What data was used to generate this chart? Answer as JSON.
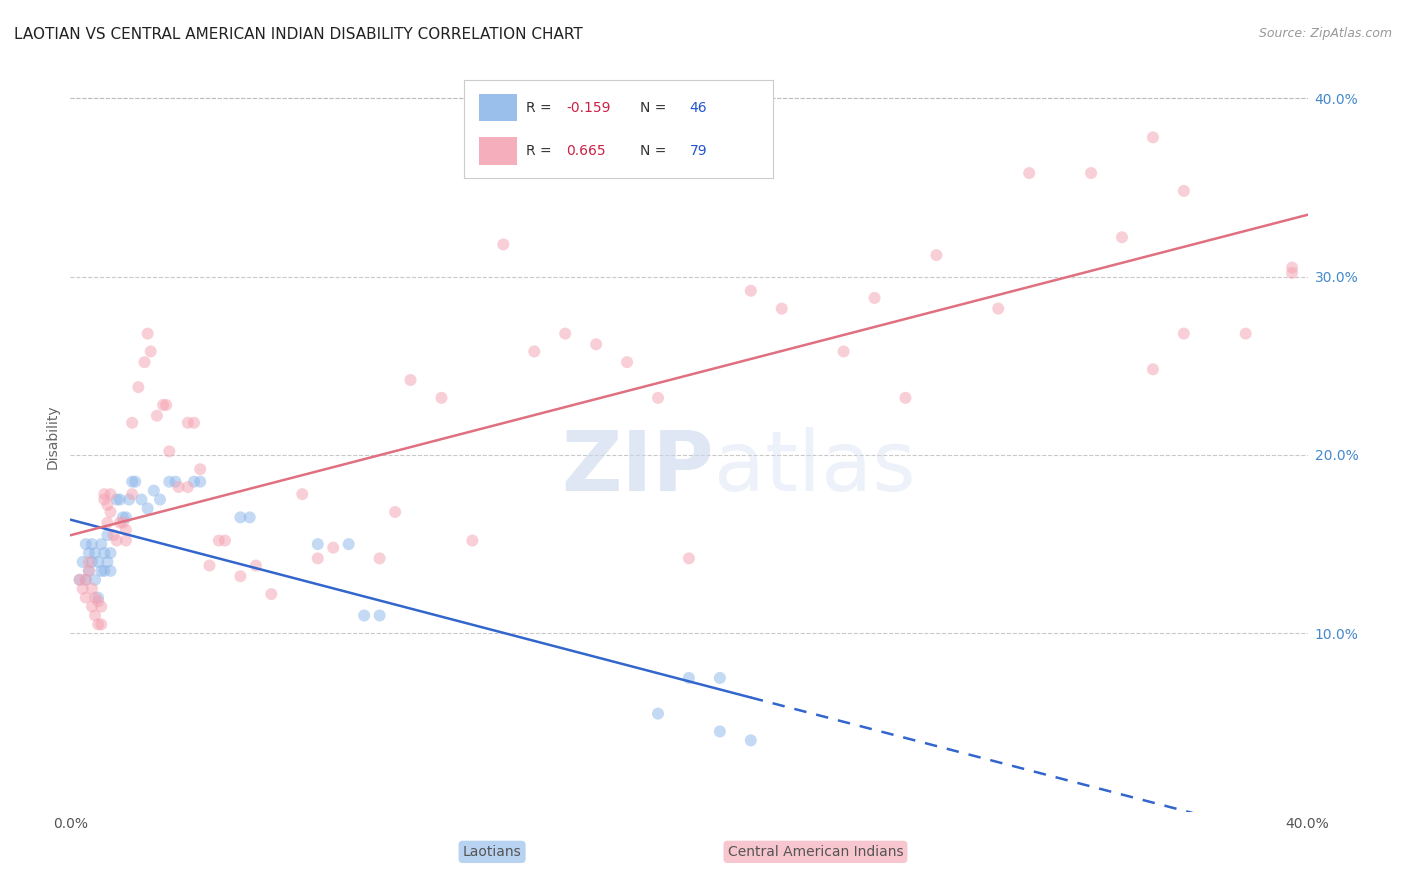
{
  "title": "LAOTIAN VS CENTRAL AMERICAN INDIAN DISABILITY CORRELATION CHART",
  "source": "Source: ZipAtlas.com",
  "ylabel": "Disability",
  "xmin": 0.0,
  "xmax": 0.4,
  "ymin": 0.0,
  "ymax": 0.42,
  "yticks": [
    0.1,
    0.2,
    0.3,
    0.4
  ],
  "ytick_labels": [
    "10.0%",
    "20.0%",
    "30.0%",
    "40.0%"
  ],
  "laotian_color": "#8ab4e8",
  "central_american_color": "#f4a0b0",
  "laotian_line_color": "#3366cc",
  "central_american_line_color": "#e07080",
  "laotian_R": -0.159,
  "laotian_N": 46,
  "central_american_R": 0.665,
  "central_american_N": 79,
  "watermark": "ZIPatlas",
  "laotian_points": [
    [
      0.003,
      0.13
    ],
    [
      0.004,
      0.14
    ],
    [
      0.005,
      0.15
    ],
    [
      0.005,
      0.13
    ],
    [
      0.006,
      0.145
    ],
    [
      0.006,
      0.135
    ],
    [
      0.007,
      0.15
    ],
    [
      0.007,
      0.14
    ],
    [
      0.008,
      0.145
    ],
    [
      0.008,
      0.13
    ],
    [
      0.009,
      0.14
    ],
    [
      0.009,
      0.12
    ],
    [
      0.01,
      0.135
    ],
    [
      0.01,
      0.15
    ],
    [
      0.011,
      0.145
    ],
    [
      0.011,
      0.135
    ],
    [
      0.012,
      0.14
    ],
    [
      0.012,
      0.155
    ],
    [
      0.013,
      0.145
    ],
    [
      0.013,
      0.135
    ],
    [
      0.015,
      0.175
    ],
    [
      0.016,
      0.175
    ],
    [
      0.017,
      0.165
    ],
    [
      0.018,
      0.165
    ],
    [
      0.019,
      0.175
    ],
    [
      0.02,
      0.185
    ],
    [
      0.021,
      0.185
    ],
    [
      0.023,
      0.175
    ],
    [
      0.025,
      0.17
    ],
    [
      0.027,
      0.18
    ],
    [
      0.029,
      0.175
    ],
    [
      0.032,
      0.185
    ],
    [
      0.034,
      0.185
    ],
    [
      0.04,
      0.185
    ],
    [
      0.042,
      0.185
    ],
    [
      0.055,
      0.165
    ],
    [
      0.058,
      0.165
    ],
    [
      0.08,
      0.15
    ],
    [
      0.09,
      0.15
    ],
    [
      0.095,
      0.11
    ],
    [
      0.1,
      0.11
    ],
    [
      0.2,
      0.075
    ],
    [
      0.21,
      0.075
    ],
    [
      0.19,
      0.055
    ],
    [
      0.21,
      0.045
    ],
    [
      0.22,
      0.04
    ]
  ],
  "central_american_points": [
    [
      0.003,
      0.13
    ],
    [
      0.004,
      0.125
    ],
    [
      0.005,
      0.12
    ],
    [
      0.005,
      0.13
    ],
    [
      0.006,
      0.14
    ],
    [
      0.006,
      0.135
    ],
    [
      0.007,
      0.115
    ],
    [
      0.007,
      0.125
    ],
    [
      0.008,
      0.11
    ],
    [
      0.008,
      0.12
    ],
    [
      0.009,
      0.105
    ],
    [
      0.009,
      0.118
    ],
    [
      0.01,
      0.115
    ],
    [
      0.01,
      0.105
    ],
    [
      0.011,
      0.175
    ],
    [
      0.011,
      0.178
    ],
    [
      0.012,
      0.172
    ],
    [
      0.012,
      0.162
    ],
    [
      0.013,
      0.178
    ],
    [
      0.013,
      0.168
    ],
    [
      0.014,
      0.155
    ],
    [
      0.015,
      0.152
    ],
    [
      0.016,
      0.162
    ],
    [
      0.017,
      0.162
    ],
    [
      0.018,
      0.152
    ],
    [
      0.018,
      0.158
    ],
    [
      0.02,
      0.218
    ],
    [
      0.02,
      0.178
    ],
    [
      0.022,
      0.238
    ],
    [
      0.024,
      0.252
    ],
    [
      0.025,
      0.268
    ],
    [
      0.026,
      0.258
    ],
    [
      0.028,
      0.222
    ],
    [
      0.03,
      0.228
    ],
    [
      0.031,
      0.228
    ],
    [
      0.032,
      0.202
    ],
    [
      0.035,
      0.182
    ],
    [
      0.038,
      0.218
    ],
    [
      0.038,
      0.182
    ],
    [
      0.04,
      0.218
    ],
    [
      0.042,
      0.192
    ],
    [
      0.045,
      0.138
    ],
    [
      0.048,
      0.152
    ],
    [
      0.05,
      0.152
    ],
    [
      0.055,
      0.132
    ],
    [
      0.06,
      0.138
    ],
    [
      0.065,
      0.122
    ],
    [
      0.075,
      0.178
    ],
    [
      0.08,
      0.142
    ],
    [
      0.085,
      0.148
    ],
    [
      0.1,
      0.142
    ],
    [
      0.105,
      0.168
    ],
    [
      0.11,
      0.242
    ],
    [
      0.12,
      0.232
    ],
    [
      0.13,
      0.152
    ],
    [
      0.14,
      0.318
    ],
    [
      0.15,
      0.258
    ],
    [
      0.16,
      0.268
    ],
    [
      0.17,
      0.262
    ],
    [
      0.18,
      0.252
    ],
    [
      0.19,
      0.232
    ],
    [
      0.2,
      0.142
    ],
    [
      0.22,
      0.292
    ],
    [
      0.23,
      0.282
    ],
    [
      0.25,
      0.258
    ],
    [
      0.26,
      0.288
    ],
    [
      0.27,
      0.232
    ],
    [
      0.28,
      0.312
    ],
    [
      0.3,
      0.282
    ],
    [
      0.31,
      0.358
    ],
    [
      0.33,
      0.358
    ],
    [
      0.34,
      0.322
    ],
    [
      0.35,
      0.248
    ],
    [
      0.36,
      0.268
    ],
    [
      0.38,
      0.268
    ],
    [
      0.395,
      0.302
    ],
    [
      0.35,
      0.378
    ],
    [
      0.36,
      0.348
    ],
    [
      0.395,
      0.305
    ]
  ],
  "title_fontsize": 11,
  "axis_label_fontsize": 10,
  "tick_fontsize": 10,
  "dot_size": 75,
  "dot_alpha": 0.5,
  "line_width": 1.8,
  "grid_color": "#bbbbbb",
  "grid_alpha": 0.8,
  "grid_linestyle": "--"
}
